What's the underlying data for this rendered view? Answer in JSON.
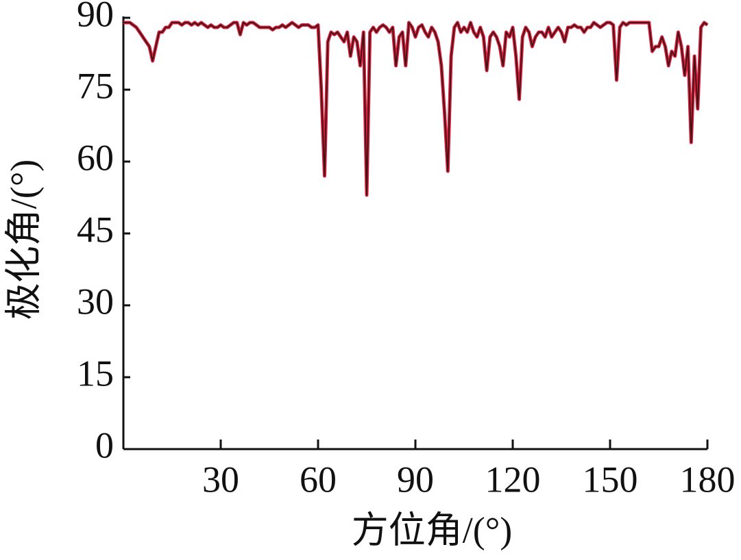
{
  "chart_data": {
    "type": "line",
    "x_label": "方位角/(°)",
    "y_label": "极化角/(°)",
    "x": [
      0,
      1,
      2,
      3,
      4,
      5,
      6,
      7,
      8,
      9,
      10,
      11,
      12,
      13,
      14,
      15,
      16,
      17,
      18,
      19,
      20,
      21,
      22,
      23,
      24,
      25,
      26,
      27,
      28,
      29,
      30,
      31,
      32,
      33,
      34,
      35,
      36,
      37,
      38,
      39,
      40,
      41,
      42,
      43,
      44,
      45,
      46,
      47,
      48,
      49,
      50,
      51,
      52,
      53,
      54,
      55,
      56,
      57,
      58,
      59,
      60,
      61,
      62,
      63,
      64,
      65,
      66,
      67,
      68,
      69,
      70,
      71,
      72,
      73,
      74,
      75,
      76,
      77,
      78,
      79,
      80,
      81,
      82,
      83,
      84,
      85,
      86,
      87,
      88,
      89,
      90,
      91,
      92,
      93,
      94,
      95,
      96,
      97,
      98,
      99,
      100,
      101,
      102,
      103,
      104,
      105,
      106,
      107,
      108,
      109,
      110,
      111,
      112,
      113,
      114,
      115,
      116,
      117,
      118,
      119,
      120,
      121,
      122,
      123,
      124,
      125,
      126,
      127,
      128,
      129,
      130,
      131,
      132,
      133,
      134,
      135,
      136,
      137,
      138,
      139,
      140,
      141,
      142,
      143,
      144,
      145,
      146,
      147,
      148,
      149,
      150,
      151,
      152,
      153,
      154,
      155,
      156,
      157,
      158,
      159,
      160,
      161,
      162,
      163,
      164,
      165,
      166,
      167,
      168,
      169,
      170,
      171,
      172,
      173,
      174,
      175,
      176,
      177,
      178,
      179,
      180
    ],
    "series": [
      {
        "color": "#d81e3c",
        "values": [
          89,
          89,
          89,
          88.5,
          88,
          87,
          86,
          85,
          84,
          81,
          84,
          87,
          87,
          88,
          88,
          89,
          89,
          89,
          88.5,
          89,
          89,
          88.5,
          89,
          88.5,
          89,
          88.5,
          88,
          88.5,
          88,
          88,
          88.5,
          88,
          88,
          88.5,
          89,
          89,
          86.5,
          89,
          88.5,
          89,
          89,
          88.5,
          88,
          88,
          88,
          88,
          87.5,
          88,
          88,
          88.5,
          88,
          88.5,
          89,
          88.5,
          88,
          88.5,
          88.5,
          88.5,
          88,
          88,
          88.5,
          75,
          57,
          85,
          87,
          86.5,
          87,
          86,
          85,
          87,
          82,
          86,
          85,
          80,
          87,
          53,
          87,
          88,
          87,
          88,
          88.5,
          88,
          87,
          88,
          80,
          86,
          87,
          80,
          89,
          88,
          86,
          88,
          88.5,
          87,
          86,
          88,
          87,
          85,
          80,
          70,
          58,
          82,
          88,
          89,
          87,
          88,
          87,
          89,
          87,
          86,
          88,
          86,
          79,
          86,
          87,
          86,
          84,
          80,
          87,
          86,
          88,
          82,
          73,
          86,
          88,
          87,
          84,
          86,
          87,
          87,
          86,
          88,
          86,
          87,
          88,
          87,
          85,
          88,
          88,
          88.5,
          88,
          88,
          87,
          88,
          88,
          89,
          88.5,
          88,
          88.5,
          89,
          89,
          88.5,
          77,
          88,
          89,
          88.5,
          89,
          89,
          89,
          89,
          89,
          89,
          89,
          83,
          84,
          84,
          86,
          84,
          80,
          83,
          82,
          87,
          84,
          78,
          84,
          64,
          82,
          71,
          88,
          89,
          88.5
        ]
      }
    ],
    "line_edge_color": "#3b1414",
    "xlim": [
      0,
      180
    ],
    "xticks": [
      30,
      60,
      90,
      120,
      150,
      180
    ],
    "ylim": [
      0,
      90
    ],
    "yticks": [
      0,
      15,
      30,
      45,
      60,
      75,
      90
    ]
  }
}
